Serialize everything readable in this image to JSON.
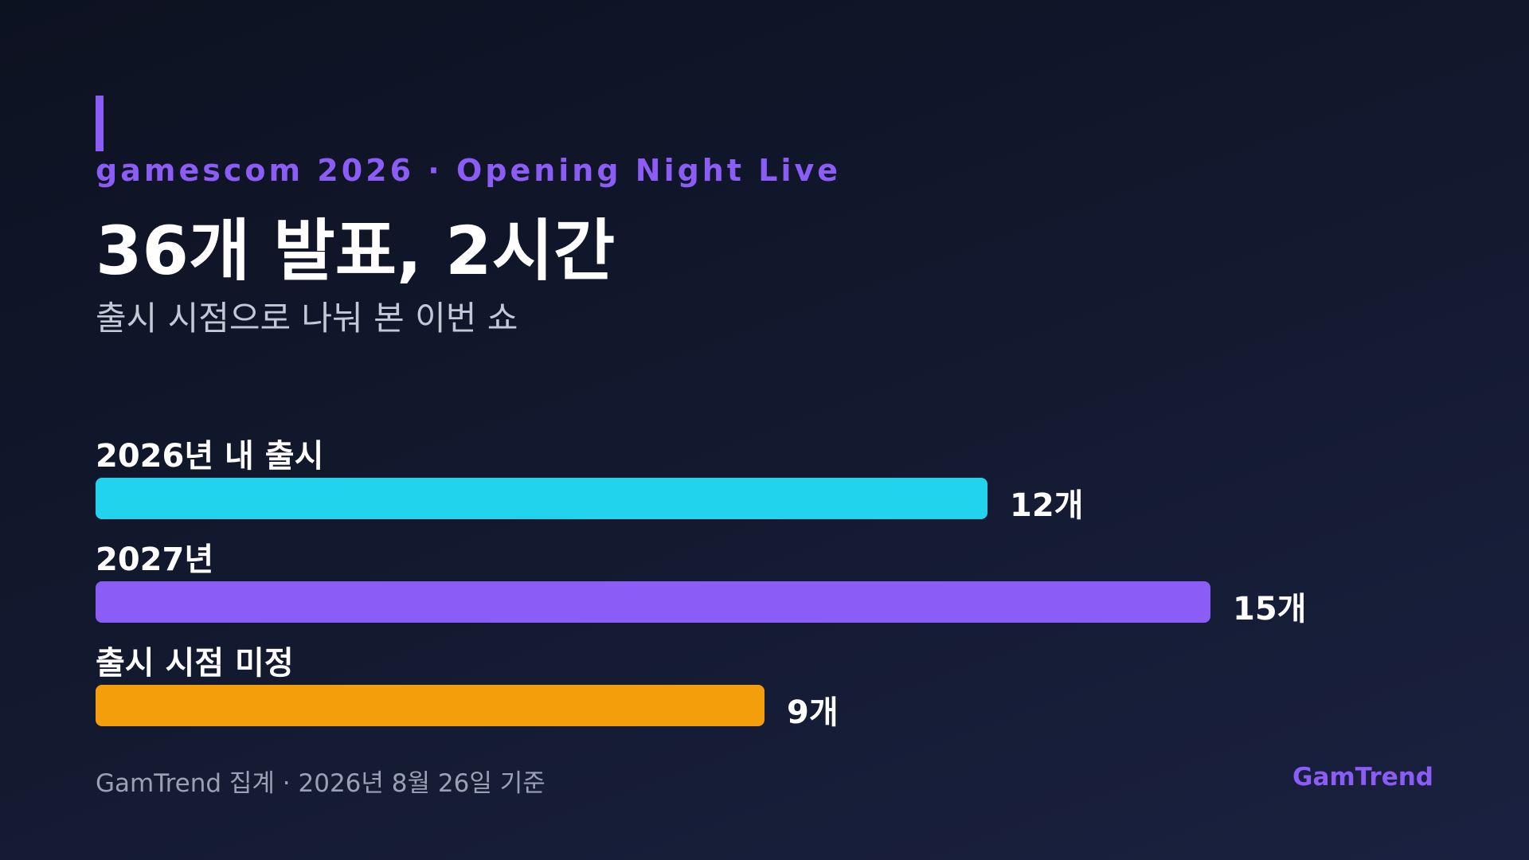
{
  "header": {
    "eyebrow": "gamescom 2026 · Opening Night Live",
    "title": "36개 발표, 2시간",
    "subtitle": "출시 시점으로 나눠 본 이번 쇼"
  },
  "chart_data": {
    "type": "bar",
    "orientation": "horizontal",
    "categories": [
      "2026년 내 출시",
      "2027년",
      "출시 시점 미정"
    ],
    "values": [
      12,
      15,
      9
    ],
    "value_labels": [
      "12개",
      "15개",
      "9개"
    ],
    "colors": [
      "#22d3ee",
      "#8b5cf6",
      "#f59e0b"
    ],
    "xlim": [
      0,
      15
    ],
    "grid": false,
    "legend": "none"
  },
  "footer": {
    "note": "GamTrend 집계 · 2026년 8월 26일 기준",
    "brand": "GamTrend"
  },
  "colors": {
    "accent": "#8b5cf6",
    "background": "#111729"
  }
}
